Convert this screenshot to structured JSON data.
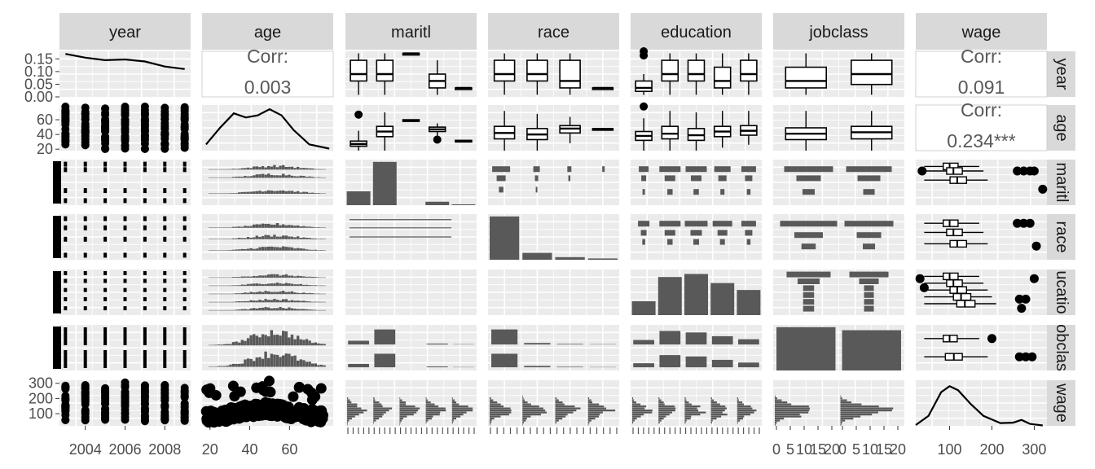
{
  "chart_data": {
    "type": "scatter",
    "variables": [
      "year",
      "age",
      "maritl",
      "race",
      "education",
      "jobclass",
      "wage"
    ],
    "column_strips": [
      "year",
      "age",
      "maritl",
      "race",
      "education",
      "jobclass",
      "wage"
    ],
    "row_strips": [
      "year",
      "age",
      "maritl",
      "race",
      "ucatio",
      "obclas",
      "wage"
    ],
    "correlations": [
      {
        "row": 0,
        "col": 1,
        "label": "Corr:",
        "value": "0.003"
      },
      {
        "row": 0,
        "col": 6,
        "label": "Corr:",
        "value": "0.091"
      },
      {
        "row": 1,
        "col": 6,
        "label": "Corr:",
        "value": "0.234***"
      }
    ],
    "y_ticks": [
      {
        "row": 0,
        "labels": [
          "0.15",
          "0.10",
          "0.05",
          "0.00"
        ],
        "values": [
          0.15,
          0.1,
          0.05,
          0.0
        ],
        "ylim": [
          0,
          0.18
        ]
      },
      {
        "row": 1,
        "labels": [
          "60",
          "40",
          "20"
        ],
        "values": [
          60,
          40,
          20
        ],
        "ylim": [
          18,
          80
        ]
      },
      {
        "row": 6,
        "labels": [
          "300",
          "200",
          "100"
        ],
        "values": [
          300,
          200,
          100
        ],
        "ylim": [
          20,
          320
        ]
      }
    ],
    "x_ticks": [
      {
        "col": 0,
        "labels": [
          "2004",
          "2006",
          "2008"
        ],
        "values": [
          2004,
          2006,
          2008
        ],
        "xlim": [
          2002.7,
          2009.3
        ]
      },
      {
        "col": 1,
        "labels": [
          "20",
          "40",
          "60"
        ],
        "values": [
          20,
          40,
          60
        ],
        "xlim": [
          16,
          82
        ]
      },
      {
        "col": 5,
        "labels": [
          "0",
          "5",
          "10",
          "15",
          "20",
          "0",
          "5",
          "10",
          "15",
          "20"
        ]
      },
      {
        "col": 6,
        "labels": [
          "100",
          "200",
          "300"
        ],
        "values": [
          100,
          200,
          300
        ],
        "xlim": [
          20,
          330
        ]
      }
    ],
    "densities": {
      "year": {
        "x": [
          2003,
          2004,
          2005,
          2006,
          2007,
          2008,
          2009
        ],
        "y": [
          0.17,
          0.155,
          0.145,
          0.148,
          0.14,
          0.12,
          0.11
        ]
      },
      "age": {
        "x": [
          18,
          25,
          32,
          38,
          44,
          50,
          56,
          62,
          70,
          80
        ],
        "y": [
          0.15,
          0.55,
          0.9,
          0.8,
          0.85,
          1.0,
          0.85,
          0.5,
          0.15,
          0.05
        ]
      },
      "wage": {
        "x": [
          20,
          50,
          80,
          100,
          120,
          150,
          180,
          220,
          250,
          270,
          290,
          320
        ],
        "y": [
          0.02,
          0.25,
          0.85,
          1.0,
          0.9,
          0.55,
          0.25,
          0.07,
          0.08,
          0.15,
          0.05,
          0.01
        ]
      }
    },
    "bars": {
      "maritl": [
        0.32,
        1.0,
        0.0,
        0.08,
        0.02
      ],
      "race": [
        1.0,
        0.16,
        0.06,
        0.03
      ],
      "education": [
        0.32,
        0.88,
        0.95,
        0.74,
        0.58
      ],
      "jobclass": [
        1.0,
        0.93
      ]
    },
    "boxplots": {
      "year_by_maritl": [
        [
          2003,
          2005,
          2006,
          2008,
          2009
        ],
        [
          2003,
          2005,
          2006,
          2008,
          2009
        ],
        [
          2009,
          2009,
          2009,
          2009,
          2009
        ],
        [
          2003,
          2004,
          2005,
          2006,
          2008
        ],
        [
          2004,
          2004,
          2004,
          2004,
          2004
        ]
      ],
      "year_by_race": [
        [
          2003,
          2005,
          2006,
          2008,
          2009
        ],
        [
          2003,
          2005,
          2006,
          2008,
          2009
        ],
        [
          2003,
          2004,
          2005,
          2008,
          2009
        ],
        [
          2004,
          2004,
          2004,
          2004,
          2004
        ]
      ],
      "year_by_education": [
        [
          2003,
          2003.5,
          2004,
          2005,
          2006
        ],
        [
          2003,
          2005,
          2006,
          2008,
          2009
        ],
        [
          2003,
          2005,
          2006,
          2008,
          2009
        ],
        [
          2003,
          2004,
          2005,
          2007,
          2009
        ],
        [
          2003,
          2005,
          2006,
          2008,
          2009
        ]
      ],
      "year_by_jobclass": [
        [
          2003,
          2004,
          2005,
          2007,
          2009
        ],
        [
          2003,
          2004.5,
          2006,
          2008,
          2009
        ]
      ],
      "age_by_maritl": [
        [
          18,
          24,
          27,
          31,
          45
        ],
        [
          18,
          37,
          44,
          51,
          70
        ],
        [
          57,
          58,
          59,
          60,
          60
        ],
        [
          34,
          44,
          47,
          50,
          55
        ],
        [
          30,
          30,
          31,
          32,
          32
        ]
      ],
      "age_by_race": [
        [
          18,
          34,
          42,
          51,
          72
        ],
        [
          18,
          33,
          40,
          48,
          68
        ],
        [
          28,
          42,
          48,
          52,
          64
        ],
        [
          46,
          46,
          47,
          48,
          48
        ]
      ],
      "age_by_education": [
        [
          18,
          32,
          38,
          44,
          62
        ],
        [
          18,
          34,
          41,
          51,
          72
        ],
        [
          18,
          32,
          39,
          48,
          70
        ],
        [
          22,
          37,
          44,
          51,
          72
        ],
        [
          26,
          39,
          45,
          52,
          72
        ]
      ],
      "age_by_jobclass": [
        [
          18,
          33,
          41,
          49,
          72
        ],
        [
          18,
          34,
          43,
          51,
          72
        ]
      ]
    }
  }
}
